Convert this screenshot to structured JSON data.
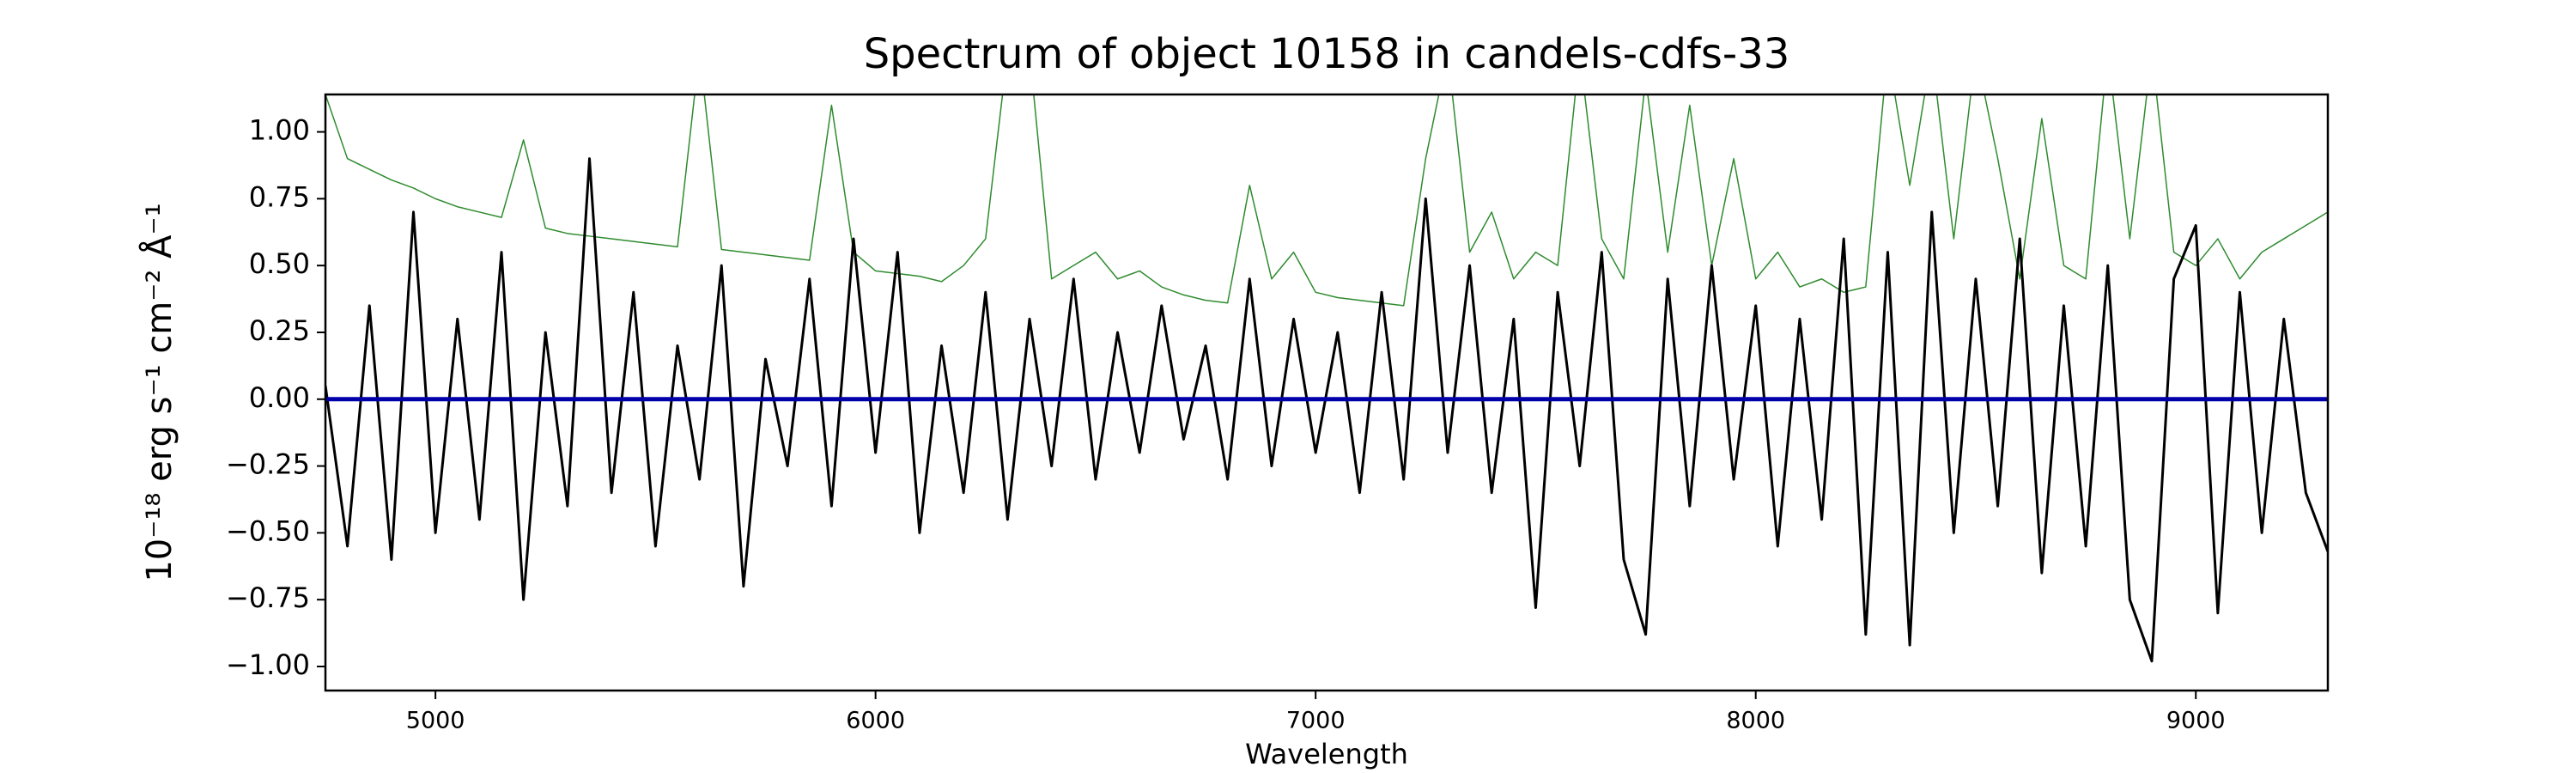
{
  "chart_data": {
    "type": "line",
    "title": "Spectrum of object 10158 in candels-cdfs-33",
    "x_label": "Wavelength",
    "y_label": "10⁻¹⁸ erg s⁻¹ cm⁻² Å⁻¹",
    "x": [
      4750,
      4800,
      4850,
      4900,
      4950,
      5000,
      5050,
      5100,
      5150,
      5200,
      5250,
      5300,
      5350,
      5400,
      5450,
      5500,
      5550,
      5600,
      5650,
      5700,
      5750,
      5800,
      5850,
      5900,
      5950,
      6000,
      6050,
      6100,
      6150,
      6200,
      6250,
      6300,
      6350,
      6400,
      6450,
      6500,
      6550,
      6600,
      6650,
      6700,
      6750,
      6800,
      6850,
      6900,
      6950,
      7000,
      7050,
      7100,
      7150,
      7200,
      7250,
      7300,
      7350,
      7400,
      7450,
      7500,
      7550,
      7600,
      7650,
      7700,
      7750,
      7800,
      7850,
      7900,
      7950,
      8000,
      8050,
      8100,
      8150,
      8200,
      8250,
      8300,
      8350,
      8400,
      8450,
      8500,
      8550,
      8600,
      8650,
      8700,
      8750,
      8800,
      8850,
      8900,
      8950,
      9000,
      9050,
      9100,
      9150,
      9200,
      9250,
      9300
    ],
    "series": [
      {
        "color": "#2e8b2e",
        "values": [
          1.14,
          0.9,
          0.86,
          0.82,
          0.79,
          0.75,
          0.72,
          0.7,
          0.68,
          0.97,
          0.64,
          0.62,
          0.61,
          0.6,
          0.59,
          0.58,
          0.57,
          1.3,
          0.56,
          0.55,
          0.54,
          0.53,
          0.52,
          1.1,
          0.55,
          0.48,
          0.47,
          0.46,
          0.44,
          0.5,
          0.6,
          1.3,
          1.3,
          0.45,
          0.5,
          0.55,
          0.45,
          0.48,
          0.42,
          0.39,
          0.37,
          0.36,
          0.8,
          0.45,
          0.55,
          0.4,
          0.38,
          0.37,
          0.36,
          0.35,
          0.9,
          1.3,
          0.55,
          0.7,
          0.45,
          0.55,
          0.5,
          1.3,
          0.6,
          0.45,
          1.2,
          0.55,
          1.1,
          0.5,
          0.9,
          0.45,
          0.55,
          0.42,
          0.45,
          0.4,
          0.42,
          1.3,
          0.8,
          1.3,
          0.6,
          1.3,
          0.9,
          0.45,
          1.05,
          0.5,
          0.45,
          1.3,
          0.6,
          1.3,
          0.55,
          0.5,
          0.6,
          0.45,
          0.55,
          0.6,
          0.65,
          0.7
        ]
      },
      {
        "color": "#000000",
        "values": [
          0.05,
          -0.55,
          0.35,
          -0.6,
          0.7,
          -0.5,
          0.3,
          -0.45,
          0.55,
          -0.75,
          0.25,
          -0.4,
          0.9,
          -0.35,
          0.4,
          -0.55,
          0.2,
          -0.3,
          0.5,
          -0.7,
          0.15,
          -0.25,
          0.45,
          -0.4,
          0.6,
          -0.2,
          0.55,
          -0.5,
          0.2,
          -0.35,
          0.4,
          -0.45,
          0.3,
          -0.25,
          0.45,
          -0.3,
          0.25,
          -0.2,
          0.35,
          -0.15,
          0.2,
          -0.3,
          0.45,
          -0.25,
          0.3,
          -0.2,
          0.25,
          -0.35,
          0.4,
          -0.3,
          0.75,
          -0.2,
          0.5,
          -0.35,
          0.3,
          -0.78,
          0.4,
          -0.25,
          0.55,
          -0.6,
          -0.88,
          0.45,
          -0.4,
          0.5,
          -0.3,
          0.35,
          -0.55,
          0.3,
          -0.45,
          0.6,
          -0.88,
          0.55,
          -0.92,
          0.7,
          -0.5,
          0.45,
          -0.4,
          0.6,
          -0.65,
          0.35,
          -0.55,
          0.5,
          -0.75,
          -0.98,
          0.45,
          0.65,
          -0.8,
          0.4,
          -0.5,
          0.3,
          -0.35,
          -0.57
        ]
      },
      {
        "color": "#0000aa",
        "values": [
          0,
          0,
          0,
          0,
          0,
          0,
          0,
          0,
          0,
          0,
          0,
          0,
          0,
          0,
          0,
          0,
          0,
          0,
          0,
          0,
          0,
          0,
          0,
          0,
          0,
          0,
          0,
          0,
          0,
          0,
          0,
          0,
          0,
          0,
          0,
          0,
          0,
          0,
          0,
          0,
          0,
          0,
          0,
          0,
          0,
          0,
          0,
          0,
          0,
          0,
          0,
          0,
          0,
          0,
          0,
          0,
          0,
          0,
          0,
          0,
          0,
          0,
          0,
          0,
          0,
          0,
          0,
          0,
          0,
          0,
          0,
          0,
          0,
          0,
          0,
          0,
          0,
          0,
          0,
          0,
          0,
          0,
          0,
          0,
          0,
          0,
          0,
          0,
          0,
          0,
          0,
          0
        ]
      }
    ],
    "xlim": [
      4750,
      9300
    ],
    "ylim": [
      -1.09,
      1.14
    ],
    "xticks": [
      5000,
      6000,
      7000,
      8000,
      9000
    ],
    "yticks": [
      {
        "value": 1.0,
        "label": "1.00"
      },
      {
        "value": 0.75,
        "label": "0.75"
      },
      {
        "value": 0.5,
        "label": "0.50"
      },
      {
        "value": 0.25,
        "label": "0.25"
      },
      {
        "value": 0,
        "label": "0.00"
      },
      {
        "value": -0.25,
        "label": "−0.25"
      },
      {
        "value": -0.5,
        "label": "−0.50"
      },
      {
        "value": -0.75,
        "label": "−0.75"
      },
      {
        "value": -1.0,
        "label": "−1.00"
      }
    ],
    "grid": false
  }
}
